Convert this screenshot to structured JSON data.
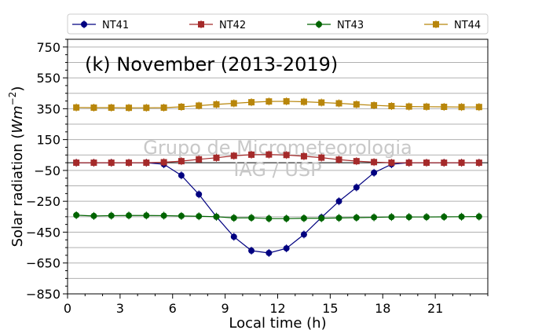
{
  "chart_data": {
    "type": "line",
    "title": "(k) November (2013-2019)",
    "xlabel": "Local time (h)",
    "ylabel": "Solar radiation (Wm^-2)",
    "ylabel_main": "Solar radiation (",
    "ylabel_unit_base": "Wm",
    "ylabel_unit_exp": "−2",
    "ylabel_close": ")",
    "watermark_lines": [
      "Grupo de Micrometeorologia",
      "IAG / USP"
    ],
    "xlim": [
      0,
      24
    ],
    "ylim": [
      -850,
      800
    ],
    "xticks": [
      0,
      3,
      6,
      9,
      12,
      15,
      18,
      21
    ],
    "yticks": [
      -850,
      -650,
      -450,
      -250,
      -50,
      150,
      350,
      550,
      750
    ],
    "ytick_labels": [
      "−850",
      "−650",
      "−450",
      "−250",
      "−50",
      "150",
      "350",
      "550",
      "750"
    ],
    "grid": "horizontal",
    "zero_line": 0,
    "legend_position": "top",
    "x": [
      0.5,
      1.5,
      2.5,
      3.5,
      4.5,
      5.5,
      6.5,
      7.5,
      8.5,
      9.5,
      10.5,
      11.5,
      12.5,
      13.5,
      14.5,
      15.5,
      16.5,
      17.5,
      18.5,
      19.5,
      20.5,
      21.5,
      22.5,
      23.5
    ],
    "series": [
      {
        "name": "NT41",
        "color": "#000080",
        "marker": "circle",
        "values": [
          0,
          0,
          0,
          0,
          0,
          -10,
          -82,
          -205,
          -350,
          -480,
          -570,
          -585,
          -555,
          -465,
          -355,
          -250,
          -160,
          -65,
          -10,
          0,
          0,
          0,
          0,
          0
        ]
      },
      {
        "name": "NT42",
        "color": "#a52a2a",
        "marker": "square",
        "values": [
          0,
          0,
          0,
          0,
          0,
          3,
          10,
          22,
          32,
          45,
          52,
          53,
          50,
          42,
          33,
          20,
          10,
          4,
          0,
          0,
          0,
          0,
          0,
          0
        ]
      },
      {
        "name": "NT43",
        "color": "#006400",
        "marker": "circle",
        "values": [
          -340,
          -345,
          -343,
          -342,
          -342,
          -343,
          -345,
          -347,
          -350,
          -358,
          -357,
          -362,
          -362,
          -360,
          -360,
          -358,
          -356,
          -354,
          -352,
          -352,
          -352,
          -351,
          -350,
          -349
        ]
      },
      {
        "name": "NT44",
        "color": "#b8860b",
        "marker": "square",
        "values": [
          358,
          357,
          357,
          356,
          356,
          357,
          362,
          370,
          378,
          385,
          392,
          397,
          398,
          395,
          390,
          385,
          378,
          372,
          367,
          364,
          363,
          362,
          361,
          361
        ]
      }
    ]
  }
}
